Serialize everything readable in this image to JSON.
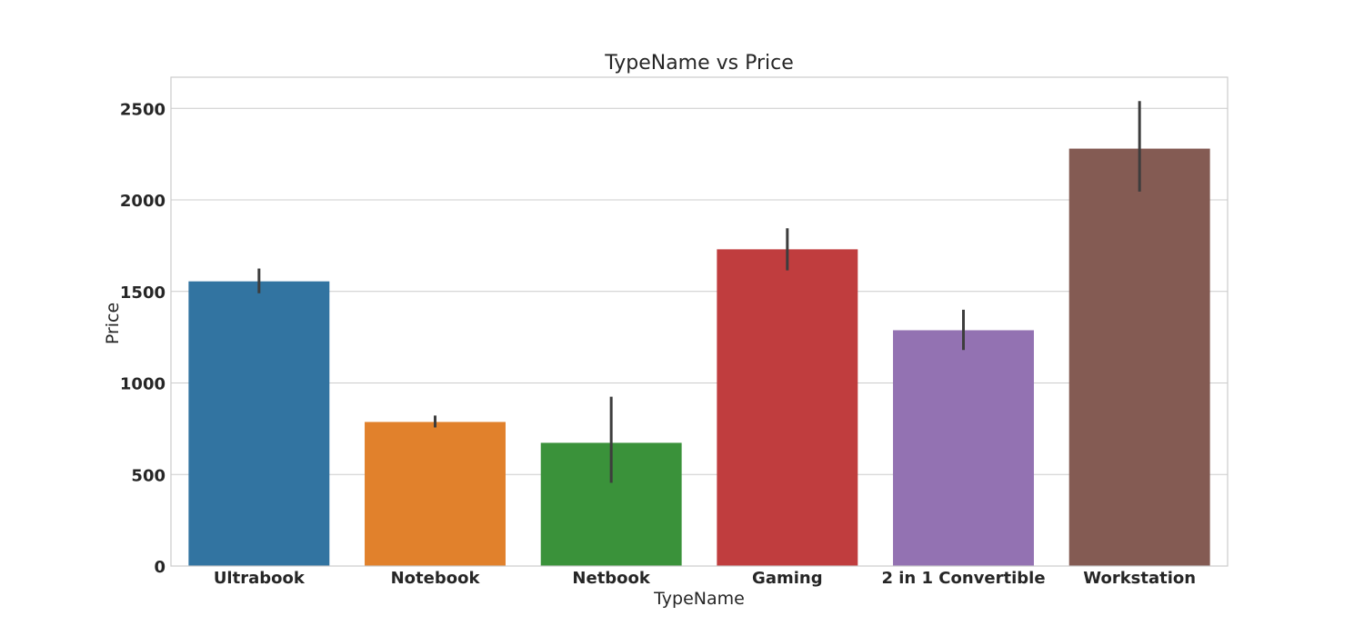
{
  "chart_data": {
    "type": "bar",
    "title": "TypeName vs Price",
    "xlabel": "TypeName",
    "ylabel": "Price",
    "ylim": [
      0,
      2670
    ],
    "yticks": [
      0,
      500,
      1000,
      1500,
      2000,
      2500
    ],
    "grid": true,
    "categories": [
      "Ultrabook",
      "Notebook",
      "Netbook",
      "Gaming",
      "2 in 1 Convertible",
      "Workstation"
    ],
    "values": [
      1555,
      787,
      673,
      1730,
      1288,
      2280
    ],
    "error_low": [
      1490,
      757,
      455,
      1615,
      1180,
      2045
    ],
    "error_high": [
      1625,
      822,
      925,
      1845,
      1400,
      2540
    ],
    "colors": [
      "#3274a1",
      "#e1812c",
      "#3a923a",
      "#c03d3e",
      "#9372b2",
      "#845b53"
    ]
  }
}
